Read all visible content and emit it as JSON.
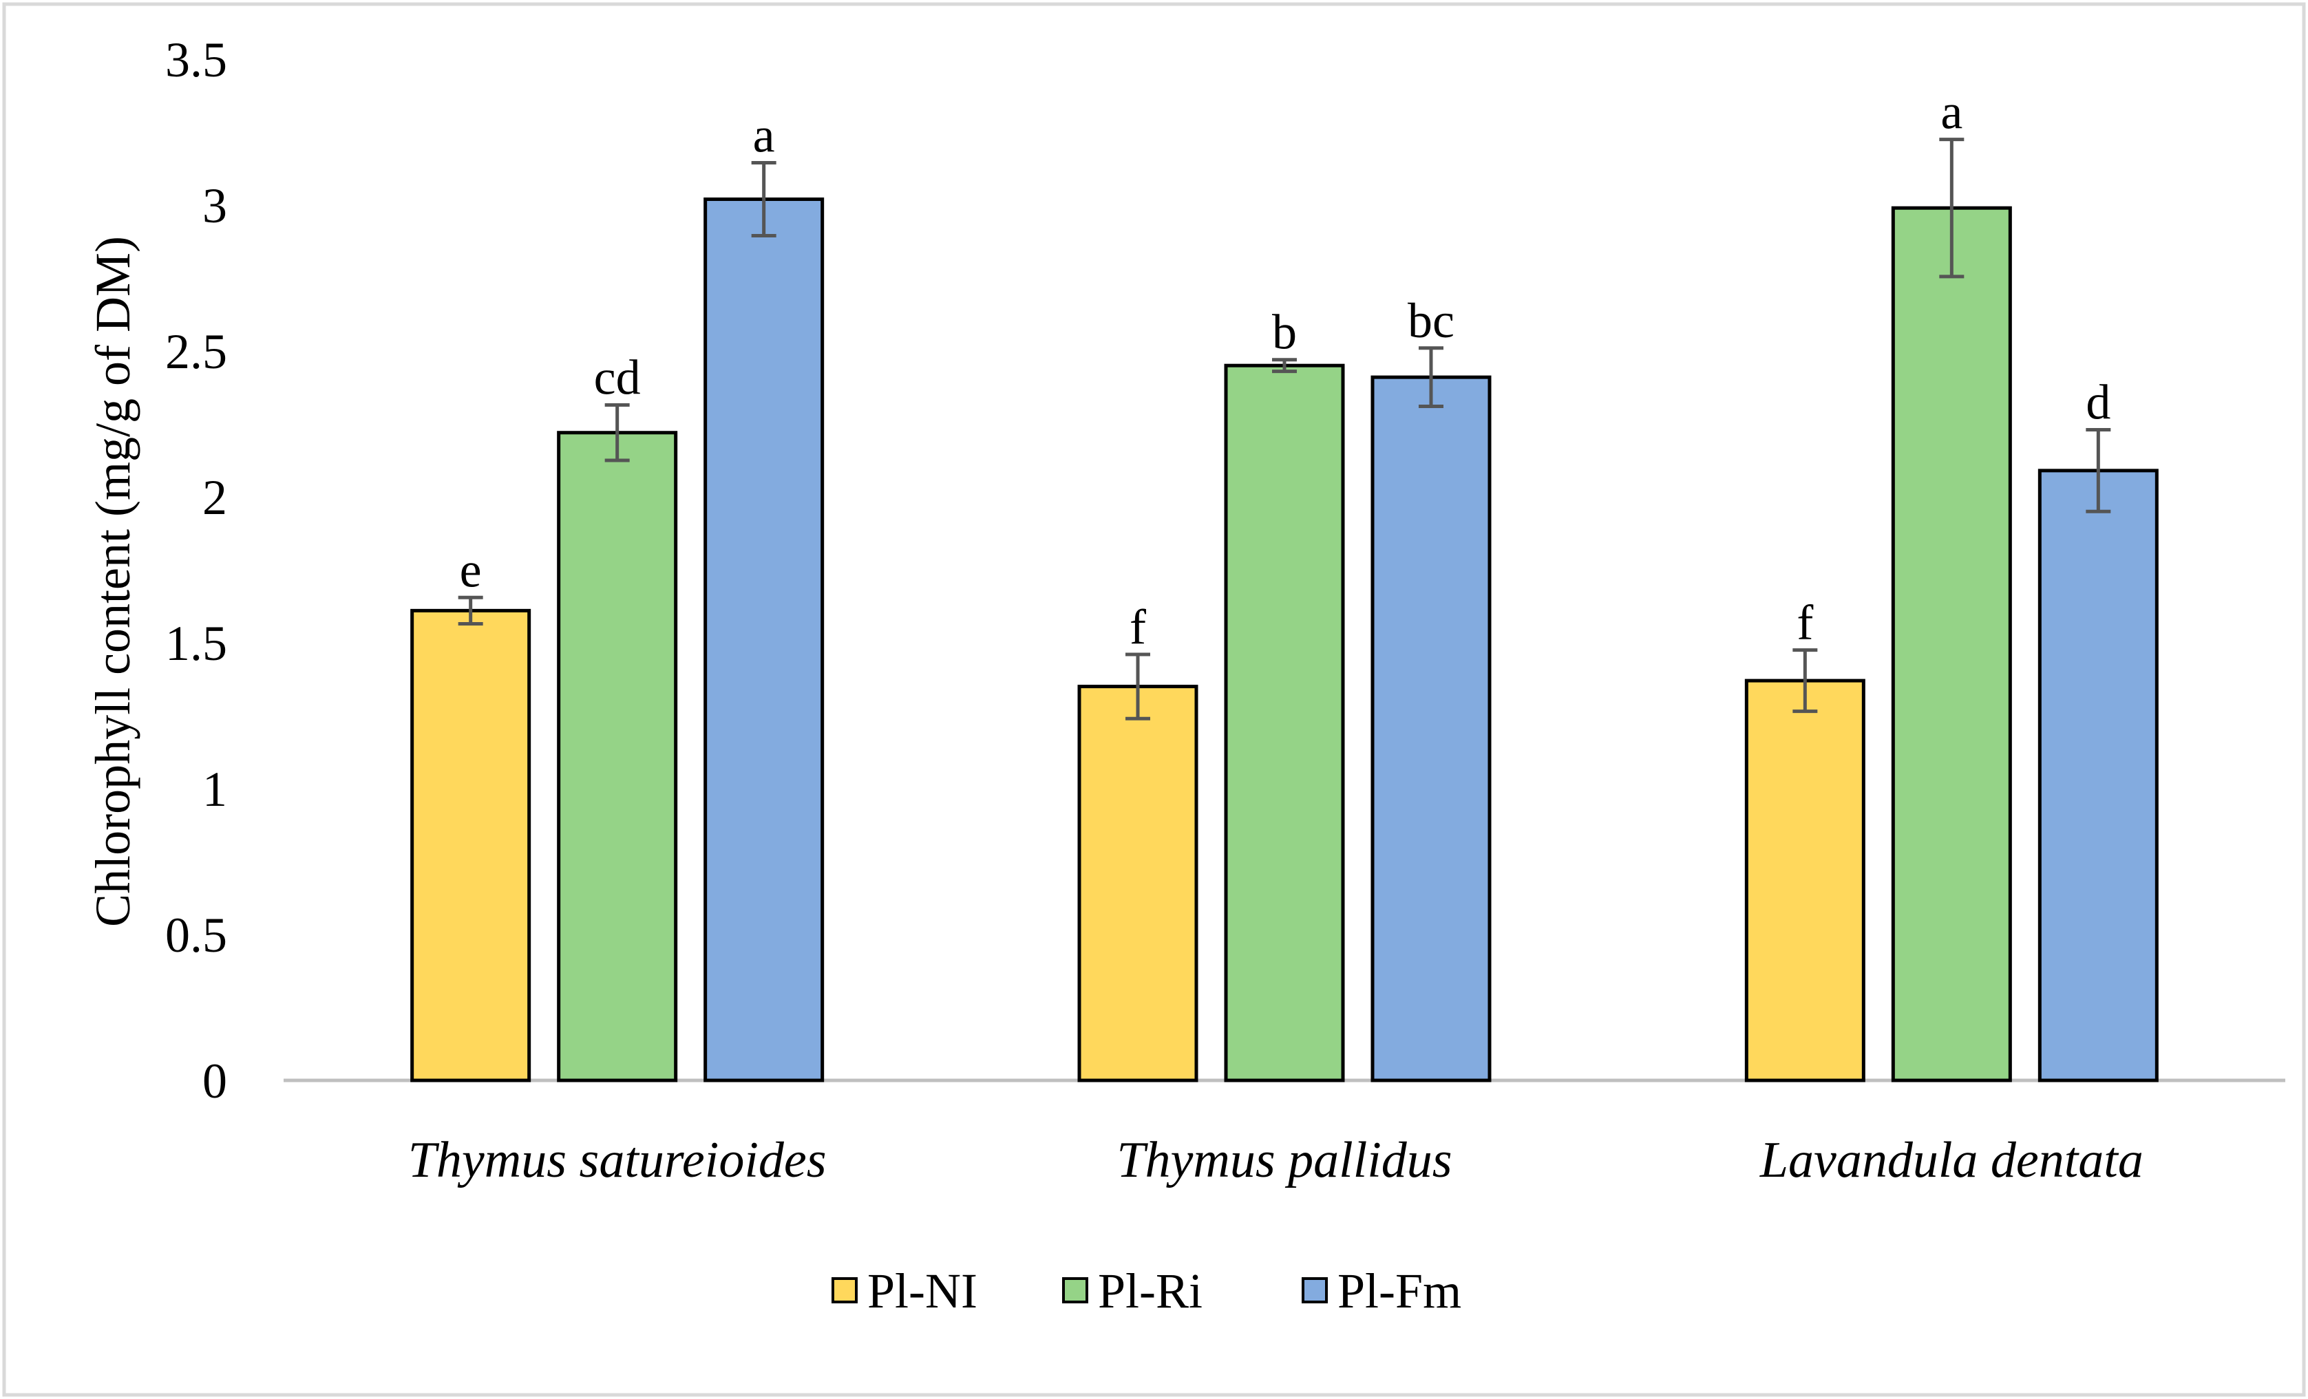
{
  "colors": {
    "Pl-NI": "#FFD85C",
    "Pl-Ri": "#95D387",
    "Pl-Fm": "#83ABDF",
    "bar_border": "#000000",
    "error_bar": "#555555",
    "axis": "#BFBFBF",
    "frame": "#D9D9D9"
  },
  "chart_data": {
    "type": "bar",
    "title": "",
    "xlabel": "",
    "ylabel": "Chlorophyll content (mg/g of DM)",
    "ylim": [
      0,
      3.5
    ],
    "yticks": [
      0,
      0.5,
      1,
      1.5,
      2,
      2.5,
      3,
      3.5
    ],
    "ytick_labels": [
      "0",
      "0.5",
      "1",
      "1.5",
      "2",
      "2.5",
      "3",
      "3.5"
    ],
    "grid": false,
    "legend_position": "bottom",
    "categories": [
      "Thymus satureioides",
      "Thymus pallidus",
      "Lavandula dentata"
    ],
    "series": [
      {
        "name": "Pl-NI",
        "values": [
          1.61,
          1.35,
          1.37
        ],
        "errors": [
          0.045,
          0.11,
          0.105
        ],
        "labels": [
          "e",
          "f",
          "f"
        ]
      },
      {
        "name": "Pl-Ri",
        "values": [
          2.22,
          2.45,
          2.99
        ],
        "errors": [
          0.095,
          0.02,
          0.235
        ],
        "labels": [
          "cd",
          "b",
          "a"
        ]
      },
      {
        "name": "Pl-Fm",
        "values": [
          3.02,
          2.41,
          2.09
        ],
        "errors": [
          0.125,
          0.1,
          0.14
        ],
        "labels": [
          "a",
          "bc",
          "d"
        ]
      }
    ]
  }
}
